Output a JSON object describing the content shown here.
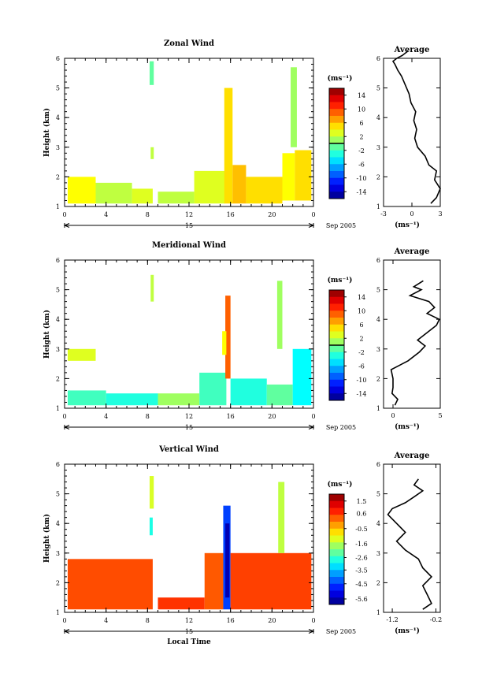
{
  "x_axis": {
    "ticks": [
      "0",
      "4",
      "8",
      "12",
      "16",
      "20",
      "0"
    ],
    "day_label": "15",
    "date_label": "Sep 2005",
    "label": "Local Time"
  },
  "y_axis": {
    "label": "Height (km)",
    "ticks": [
      "1",
      "2",
      "3",
      "4",
      "5",
      "6"
    ]
  },
  "average_title": "Average",
  "unit_label": "(ms⁻¹)",
  "chart_data": [
    {
      "type": "heatmap",
      "title": "Zonal Wind",
      "xlabel": "",
      "ylabel": "Height (km)",
      "xlim": [
        0,
        24
      ],
      "ylim": [
        1,
        6
      ],
      "colorbar": {
        "unit": "(ms⁻¹)",
        "range": [
          -16,
          16
        ],
        "ticks": [
          "14",
          "10",
          "6",
          "2",
          "-2",
          "-6",
          "-10",
          "-14"
        ],
        "tick_values": [
          14,
          10,
          6,
          2,
          -2,
          -6,
          -10,
          -14
        ],
        "zero_line": 0
      },
      "patches": [
        {
          "x": [
            0.3,
            3.0
          ],
          "y": [
            1.1,
            2.0
          ],
          "value": 4
        },
        {
          "x": [
            3.0,
            6.5
          ],
          "y": [
            1.1,
            1.8
          ],
          "value": 2
        },
        {
          "x": [
            6.5,
            8.5
          ],
          "y": [
            1.1,
            1.6
          ],
          "value": 3
        },
        {
          "x": [
            8.2,
            8.6
          ],
          "y": [
            5.1,
            5.9
          ],
          "value": -1
        },
        {
          "x": [
            8.3,
            8.6
          ],
          "y": [
            2.6,
            3.0
          ],
          "value": 2
        },
        {
          "x": [
            9.0,
            12.5
          ],
          "y": [
            1.1,
            1.5
          ],
          "value": 2
        },
        {
          "x": [
            12.5,
            15.5
          ],
          "y": [
            1.1,
            2.2
          ],
          "value": 3
        },
        {
          "x": [
            15.4,
            16.2
          ],
          "y": [
            1.1,
            5.0
          ],
          "value": 5
        },
        {
          "x": [
            16.2,
            17.5
          ],
          "y": [
            1.1,
            2.4
          ],
          "value": 6
        },
        {
          "x": [
            17.5,
            21.0
          ],
          "y": [
            1.1,
            2.0
          ],
          "value": 5
        },
        {
          "x": [
            21.0,
            22.2
          ],
          "y": [
            1.2,
            2.8
          ],
          "value": 4
        },
        {
          "x": [
            22.2,
            23.8
          ],
          "y": [
            1.2,
            2.9
          ],
          "value": 5
        },
        {
          "x": [
            21.8,
            22.4
          ],
          "y": [
            3.0,
            5.7
          ],
          "value": 1
        }
      ],
      "average_profile": {
        "xlim": [
          -3,
          3
        ],
        "ticks": [
          "-3",
          "0",
          "3"
        ],
        "tick_values": [
          -3,
          0,
          3
        ],
        "height": [
          1.1,
          1.3,
          1.6,
          1.9,
          2.2,
          2.4,
          2.7,
          3.0,
          3.3,
          3.6,
          3.9,
          4.2,
          4.5,
          4.8,
          5.1,
          5.4,
          5.6,
          5.8,
          5.9,
          6.0,
          6.1,
          6.25
        ],
        "value": [
          2.0,
          2.6,
          3.0,
          2.4,
          2.6,
          1.8,
          1.4,
          0.6,
          0.3,
          0.5,
          0.2,
          0.4,
          -0.1,
          -0.3,
          -0.7,
          -1.1,
          -1.5,
          -1.8,
          -2.0,
          -1.6,
          -1.0,
          -0.4
        ]
      }
    },
    {
      "type": "heatmap",
      "title": "Meridional Wind",
      "xlabel": "",
      "ylabel": "Height (km)",
      "xlim": [
        0,
        24
      ],
      "ylim": [
        1,
        6
      ],
      "colorbar": {
        "unit": "(ms⁻¹)",
        "range": [
          -16,
          16
        ],
        "ticks": [
          "14",
          "10",
          "6",
          "2",
          "-2",
          "-6",
          "-10",
          "-14"
        ],
        "tick_values": [
          14,
          10,
          6,
          2,
          -2,
          -6,
          -10,
          -14
        ],
        "zero_line": 0
      },
      "patches": [
        {
          "x": [
            0.3,
            4.0
          ],
          "y": [
            1.1,
            1.6
          ],
          "value": -2
        },
        {
          "x": [
            0.3,
            3.0
          ],
          "y": [
            2.6,
            3.0
          ],
          "value": 3
        },
        {
          "x": [
            4.0,
            9.0
          ],
          "y": [
            1.1,
            1.5
          ],
          "value": -3
        },
        {
          "x": [
            8.3,
            8.6
          ],
          "y": [
            4.6,
            5.5
          ],
          "value": 2
        },
        {
          "x": [
            9.0,
            13.0
          ],
          "y": [
            1.1,
            1.5
          ],
          "value": 1
        },
        {
          "x": [
            13.0,
            15.6
          ],
          "y": [
            1.1,
            2.2
          ],
          "value": -2
        },
        {
          "x": [
            15.5,
            16.0
          ],
          "y": [
            2.0,
            4.8
          ],
          "value": 9
        },
        {
          "x": [
            15.2,
            15.6
          ],
          "y": [
            2.8,
            3.6
          ],
          "value": 4
        },
        {
          "x": [
            16.0,
            19.5
          ],
          "y": [
            1.1,
            2.0
          ],
          "value": -3
        },
        {
          "x": [
            19.5,
            22.0
          ],
          "y": [
            1.1,
            1.8
          ],
          "value": -1
        },
        {
          "x": [
            22.0,
            23.8
          ],
          "y": [
            1.1,
            3.0
          ],
          "value": -4
        },
        {
          "x": [
            20.5,
            21.0
          ],
          "y": [
            3.0,
            5.3
          ],
          "value": 1
        }
      ],
      "average_profile": {
        "xlim": [
          -1,
          5
        ],
        "ticks": [
          "0",
          "5"
        ],
        "tick_values": [
          0,
          5
        ],
        "height": [
          1.1,
          1.3,
          1.5,
          1.7,
          2.0,
          2.3,
          2.6,
          2.9,
          3.1,
          3.3,
          3.6,
          3.8,
          4.0,
          4.2,
          4.4,
          4.6,
          4.8,
          5.0,
          5.1,
          5.3
        ],
        "value": [
          0.2,
          0.5,
          -0.1,
          0.0,
          0.0,
          -0.2,
          1.6,
          2.8,
          3.4,
          2.6,
          3.8,
          4.6,
          4.9,
          3.6,
          4.4,
          3.8,
          1.8,
          3.0,
          2.2,
          3.2
        ]
      }
    },
    {
      "type": "heatmap",
      "title": "Vertical Wind",
      "xlabel": "Local Time",
      "ylabel": "Height (km)",
      "xlim": [
        0,
        24
      ],
      "ylim": [
        1,
        6
      ],
      "colorbar": {
        "unit": "(ms⁻¹)",
        "range": [
          -6,
          2
        ],
        "ticks": [
          "1.5",
          "0.6",
          "-0.5",
          "-1.6",
          "-2.6",
          "-3.5",
          "-4.5",
          "-5.6"
        ],
        "tick_values": [
          1.5,
          0.6,
          -0.5,
          -1.6,
          -2.6,
          -3.5,
          -4.5,
          -5.6
        ]
      },
      "patches": [
        {
          "x": [
            0.3,
            8.5
          ],
          "y": [
            1.1,
            2.8
          ],
          "value": 0.4
        },
        {
          "x": [
            8.2,
            8.6
          ],
          "y": [
            4.5,
            5.6
          ],
          "value": -1.3
        },
        {
          "x": [
            8.2,
            8.5
          ],
          "y": [
            3.6,
            4.2
          ],
          "value": -2.8
        },
        {
          "x": [
            9.0,
            13.5
          ],
          "y": [
            1.1,
            1.5
          ],
          "value": 0.6
        },
        {
          "x": [
            13.5,
            15.3
          ],
          "y": [
            1.1,
            3.0
          ],
          "value": 0.3
        },
        {
          "x": [
            15.3,
            16.0
          ],
          "y": [
            1.1,
            4.6
          ],
          "value": -4.5
        },
        {
          "x": [
            15.5,
            15.9
          ],
          "y": [
            1.5,
            4.0
          ],
          "value": -5.6
        },
        {
          "x": [
            16.0,
            23.8
          ],
          "y": [
            1.1,
            3.0
          ],
          "value": 0.5
        },
        {
          "x": [
            20.6,
            21.2
          ],
          "y": [
            3.0,
            5.4
          ],
          "value": -1.5
        }
      ],
      "average_profile": {
        "xlim": [
          -1.4,
          -0.1
        ],
        "ticks": [
          "-1.2",
          "-0.2"
        ],
        "tick_values": [
          -1.2,
          -0.2
        ],
        "height": [
          1.1,
          1.3,
          1.6,
          1.9,
          2.2,
          2.5,
          2.8,
          3.1,
          3.4,
          3.7,
          4.0,
          4.3,
          4.5,
          4.7,
          4.9,
          5.1,
          5.3,
          5.5
        ],
        "value": [
          -0.5,
          -0.3,
          -0.4,
          -0.5,
          -0.3,
          -0.5,
          -0.6,
          -0.9,
          -1.1,
          -0.9,
          -1.1,
          -1.3,
          -1.2,
          -0.9,
          -0.7,
          -0.5,
          -0.7,
          -0.6
        ]
      }
    }
  ]
}
